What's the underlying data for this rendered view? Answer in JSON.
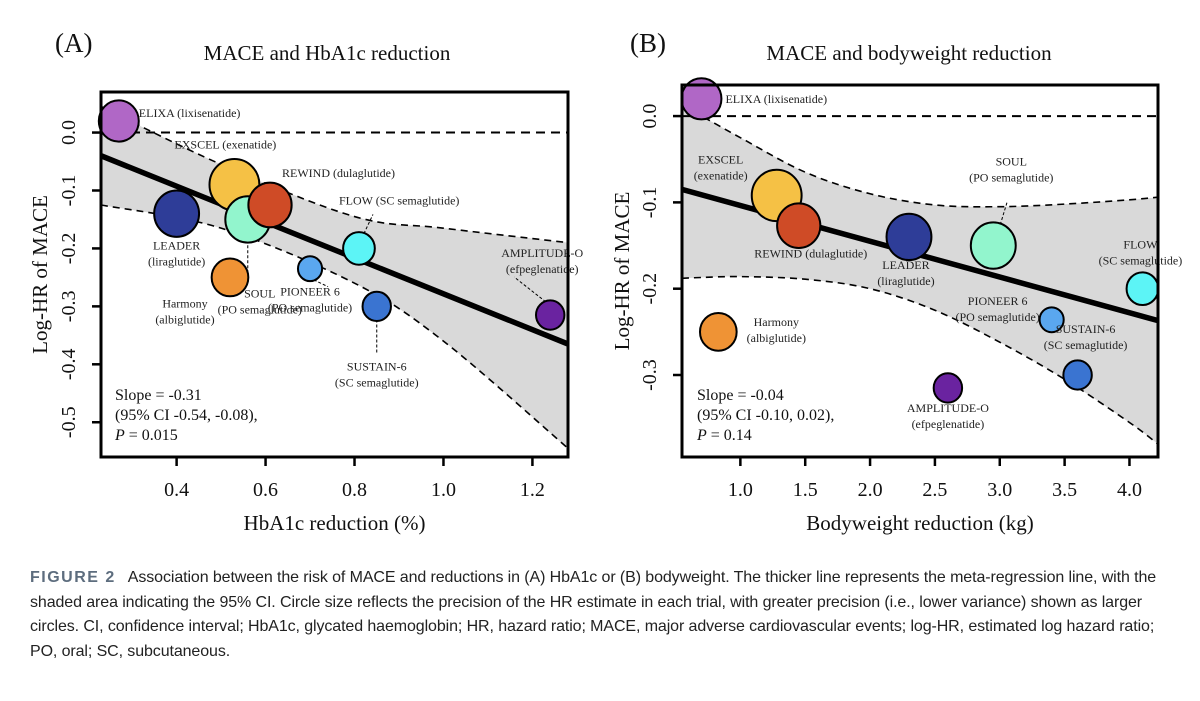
{
  "chart_data": [
    {
      "panel": "(A)",
      "type": "scatter",
      "title": "MACE and HbA1c reduction",
      "xlabel": "HbA1c reduction (%)",
      "ylabel": "Log-HR of MACE",
      "xlim": [
        0.23,
        1.28
      ],
      "ylim": [
        -0.56,
        0.07
      ],
      "xticks": [
        0.4,
        0.6,
        0.8,
        1.0,
        1.2
      ],
      "xtick_labels": [
        "0.4",
        "0.6",
        "0.8",
        "1.0",
        "1.2"
      ],
      "yticks": [
        0.0,
        -0.1,
        -0.2,
        -0.3,
        -0.4,
        -0.5
      ],
      "ytick_labels": [
        "0.0",
        "-0.1",
        "-0.2",
        "-0.3",
        "-0.4",
        "-0.5"
      ],
      "reference_line_y": 0.0,
      "regression": {
        "slope": -0.31,
        "x": [
          0.23,
          1.28
        ],
        "y": [
          -0.04,
          -0.365
        ]
      },
      "ci_band": {
        "x": [
          0.23,
          0.5,
          0.8,
          1.0,
          1.28
        ],
        "upper": [
          0.045,
          -0.055,
          -0.145,
          -0.165,
          -0.19
        ],
        "lower": [
          -0.125,
          -0.165,
          -0.26,
          -0.36,
          -0.545
        ]
      },
      "stats": [
        "Slope = -0.31",
        "(95% CI -0.54, -0.08),",
        "P = 0.015"
      ],
      "points": [
        {
          "trial": "ELIXA",
          "drug": "lixisenatide",
          "label_lines": [
            "ELIXA (lixisenatide)"
          ],
          "x": 0.27,
          "y": 0.02,
          "size": 0.8,
          "color": "#b067c6"
        },
        {
          "trial": "EXSCEL",
          "drug": "exenatide",
          "label_lines": [
            "EXSCEL (exenatide)"
          ],
          "x": 0.53,
          "y": -0.09,
          "size": 1.1,
          "color": "#f5c145"
        },
        {
          "trial": "LEADER",
          "drug": "liraglutide",
          "label_lines": [
            "LEADER",
            "(liraglutide)"
          ],
          "x": 0.4,
          "y": -0.14,
          "size": 0.95,
          "color": "#2e3d98"
        },
        {
          "trial": "SOUL",
          "drug": "PO semaglutide",
          "label_lines": [
            "SOUL",
            "(PO semaglutide)"
          ],
          "x": 0.56,
          "y": -0.15,
          "size": 0.95,
          "color": "#92f5cd"
        },
        {
          "trial": "REWIND",
          "drug": "dulaglutide",
          "label_lines": [
            "REWIND (dulaglutide)"
          ],
          "x": 0.61,
          "y": -0.125,
          "size": 0.9,
          "color": "#cf4b26"
        },
        {
          "trial": "FLOW",
          "drug": "SC semaglutide",
          "label_lines": [
            "FLOW (SC semaglutide)"
          ],
          "x": 0.81,
          "y": -0.2,
          "size": 0.55,
          "color": "#5cf4f6"
        },
        {
          "trial": "Harmony",
          "drug": "albiglutide",
          "label_lines": [
            "Harmony",
            "(albiglutide)"
          ],
          "x": 0.52,
          "y": -0.25,
          "size": 0.7,
          "color": "#ef9335"
        },
        {
          "trial": "PIONEER 6",
          "drug": "PO semaglutide",
          "label_lines": [
            "PIONEER 6",
            "(PO semaglutide)"
          ],
          "x": 0.7,
          "y": -0.235,
          "size": 0.32,
          "color": "#5aa7ef"
        },
        {
          "trial": "SUSTAIN-6",
          "drug": "SC semaglutide",
          "label_lines": [
            "SUSTAIN-6",
            "(SC semaglutide)"
          ],
          "x": 0.85,
          "y": -0.3,
          "size": 0.45,
          "color": "#3a74d1"
        },
        {
          "trial": "AMPLITUDE-O",
          "drug": "efpeglenatide",
          "label_lines": [
            "AMPLITUDE-O",
            "(efpeglenatide)"
          ],
          "x": 1.24,
          "y": -0.315,
          "size": 0.45,
          "color": "#6a23a0"
        }
      ]
    },
    {
      "panel": "(B)",
      "type": "scatter",
      "title": "MACE and bodyweight reduction",
      "xlabel": "Bodyweight reduction (kg)",
      "ylabel": "Log-HR of MACE",
      "xlim": [
        0.55,
        4.22
      ],
      "ylim": [
        -0.395,
        0.036
      ],
      "xticks": [
        1.0,
        1.5,
        2.0,
        2.5,
        3.0,
        3.5,
        4.0
      ],
      "xtick_labels": [
        "1.0",
        "1.5",
        "2.0",
        "2.5",
        "3.0",
        "3.5",
        "4.0"
      ],
      "yticks": [
        0.0,
        -0.1,
        -0.2,
        -0.3
      ],
      "ytick_labels": [
        "0.0",
        "-0.1",
        "-0.2",
        "-0.3"
      ],
      "reference_line_y": 0.0,
      "regression": {
        "slope": -0.04,
        "x": [
          0.55,
          4.22
        ],
        "y": [
          -0.085,
          -0.237
        ]
      },
      "ci_band": {
        "x": [
          0.55,
          0.7,
          1.0,
          1.5,
          2.0,
          2.5,
          3.0,
          3.5,
          4.0,
          4.22
        ],
        "upper": [
          0.01,
          0.0,
          -0.025,
          -0.065,
          -0.09,
          -0.103,
          -0.105,
          -0.102,
          -0.097,
          -0.094
        ],
        "lower": [
          -0.188,
          -0.187,
          -0.186,
          -0.189,
          -0.2,
          -0.225,
          -0.262,
          -0.305,
          -0.355,
          -0.38
        ]
      },
      "stats": [
        "Slope = -0.04",
        "(95% CI -0.10, 0.02),",
        "P = 0.14"
      ],
      "points": [
        {
          "trial": "ELIXA",
          "drug": "lixisenatide",
          "label_lines": [
            "ELIXA (lixisenatide)"
          ],
          "x": 0.7,
          "y": 0.02,
          "size": 0.8,
          "color": "#b067c6"
        },
        {
          "trial": "EXSCEL",
          "drug": "exenatide",
          "label_lines": [
            "EXSCEL",
            "(exenatide)"
          ],
          "x": 1.28,
          "y": -0.092,
          "size": 1.1,
          "color": "#f5c145"
        },
        {
          "trial": "REWIND",
          "drug": "dulaglutide",
          "label_lines": [
            "REWIND (dulaglutide)"
          ],
          "x": 1.45,
          "y": -0.127,
          "size": 0.9,
          "color": "#cf4b26"
        },
        {
          "trial": "LEADER",
          "drug": "liraglutide",
          "label_lines": [
            "LEADER",
            "(liraglutide)"
          ],
          "x": 2.3,
          "y": -0.14,
          "size": 0.95,
          "color": "#2e3d98"
        },
        {
          "trial": "SOUL",
          "drug": "PO semaglutide",
          "label_lines": [
            "SOUL",
            "(PO semaglutide)"
          ],
          "x": 2.95,
          "y": -0.15,
          "size": 0.95,
          "color": "#92f5cd"
        },
        {
          "trial": "FLOW",
          "drug": "SC semaglutide",
          "label_lines": [
            "FLOW",
            "(SC semaglutide)"
          ],
          "x": 4.1,
          "y": -0.2,
          "size": 0.55,
          "color": "#5cf4f6"
        },
        {
          "trial": "Harmony",
          "drug": "albiglutide",
          "label_lines": [
            "Harmony",
            "(albiglutide)"
          ],
          "x": 0.83,
          "y": -0.25,
          "size": 0.7,
          "color": "#ef9335"
        },
        {
          "trial": "PIONEER 6",
          "drug": "PO semaglutide",
          "label_lines": [
            "PIONEER 6",
            "(PO semaglutide)"
          ],
          "x": 3.4,
          "y": -0.236,
          "size": 0.32,
          "color": "#5aa7ef"
        },
        {
          "trial": "SUSTAIN-6",
          "drug": "SC semaglutide",
          "label_lines": [
            "SUSTAIN-6",
            "(SC semaglutide)"
          ],
          "x": 3.6,
          "y": -0.3,
          "size": 0.45,
          "color": "#3a74d1"
        },
        {
          "trial": "AMPLITUDE-O",
          "drug": "efpeglenatide",
          "label_lines": [
            "AMPLITUDE-O",
            "(efpeglenatide)"
          ],
          "x": 2.6,
          "y": -0.315,
          "size": 0.45,
          "color": "#6a23a0"
        }
      ]
    }
  ],
  "caption": {
    "figure_number": "FIGURE 2",
    "text": "Association between the risk of MACE and reductions in (A) HbA1c or (B) bodyweight. The thicker line represents the meta-regression line, with the shaded area indicating the 95% CI. Circle size reflects the precision of the HR estimate in each trial, with greater precision (i.e., lower variance) shown as larger circles. CI, confidence interval; HbA1c, glycated haemoglobin; HR, hazard ratio; MACE, major adverse cardiovascular events; log-HR, estimated log hazard ratio; PO, oral; SC, subcutaneous."
  },
  "colors": {
    "ci_fill": "#d9d9d9",
    "line": "#000000",
    "caption_label": "#5d6d7e"
  }
}
